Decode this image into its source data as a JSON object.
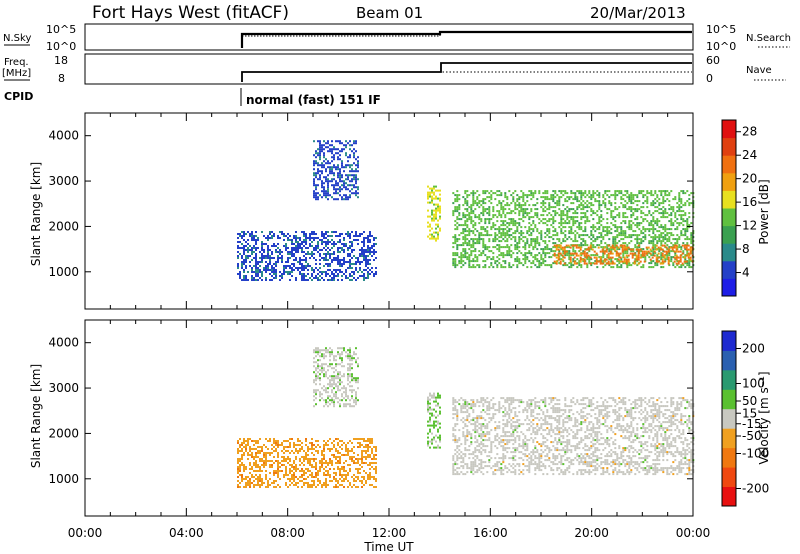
{
  "header": {
    "title": "Fort Hays West (fitACF)",
    "beam": "Beam 01",
    "date": "20/Mar/2013"
  },
  "params": {
    "nsky_label": "N.Sky",
    "nsky_ticks": [
      "10^5",
      "10^0"
    ],
    "nsearch_label": "N.Search",
    "nsearch_ticks": [
      "10^5",
      "10^0"
    ],
    "freq_label": "Freq.",
    "freq_unit": "[MHz]",
    "freq_ticks": [
      "18",
      "8"
    ],
    "nave_label": "Nave",
    "nave_ticks": [
      "60",
      "0"
    ],
    "cpid_label": "CPID",
    "cpid_value": "normal (fast) 151 IF"
  },
  "colors": {
    "power": [
      "#1e1ee6",
      "#2440c8",
      "#2a8a8a",
      "#3aa050",
      "#60c040",
      "#e8e020",
      "#f0a010",
      "#f07010",
      "#e04010",
      "#e01010"
    ],
    "velocity": [
      "#e81010",
      "#f04810",
      "#f07810",
      "#f0a020",
      "#c8c8c0",
      "#5ac030",
      "#2a9a70",
      "#2a60b0",
      "#1e2ad0"
    ]
  },
  "chart_data": [
    {
      "type": "heatmap",
      "name": "power",
      "ylabel": "Slant Range [km]",
      "x_ticks": [
        "00:00",
        "04:00",
        "08:00",
        "12:00",
        "16:00",
        "20:00",
        "00:00"
      ],
      "xlim_hours": [
        0,
        24
      ],
      "y_ticks": [
        1000,
        2000,
        3000,
        4000
      ],
      "ylim_km": [
        180,
        4500
      ],
      "colorbar": {
        "label": "Power [dB]",
        "ticks": [
          4,
          8,
          12,
          16,
          20,
          24,
          28
        ],
        "range": [
          0,
          30
        ]
      },
      "echo_regions": [
        {
          "t_start": 6.0,
          "t_end": 11.5,
          "r_low": 800,
          "r_high": 1900,
          "power_db": 5
        },
        {
          "t_start": 9.0,
          "t_end": 10.8,
          "r_low": 2600,
          "r_high": 3900,
          "power_db": 5
        },
        {
          "t_start": 13.5,
          "t_end": 14.0,
          "r_low": 1700,
          "r_high": 2900,
          "power_db": 16
        },
        {
          "t_start": 14.5,
          "t_end": 24.0,
          "r_low": 1100,
          "r_high": 2800,
          "power_db": 13
        },
        {
          "t_start": 18.5,
          "t_end": 24.0,
          "r_low": 1200,
          "r_high": 1600,
          "power_db": 22
        }
      ]
    },
    {
      "type": "heatmap",
      "name": "velocity",
      "ylabel": "Slant Range [km]",
      "xlabel": "Time UT",
      "x_ticks": [
        "00:00",
        "04:00",
        "08:00",
        "12:00",
        "16:00",
        "20:00",
        "00:00"
      ],
      "xlim_hours": [
        0,
        24
      ],
      "y_ticks": [
        1000,
        2000,
        3000,
        4000
      ],
      "ylim_km": [
        180,
        4500
      ],
      "colorbar": {
        "label": "Velocity [m s⁻¹]",
        "ticks": [
          200,
          100,
          50,
          15,
          -15,
          -50,
          -100,
          -200
        ],
        "range": [
          -250,
          250
        ]
      },
      "echo_regions": [
        {
          "t_start": 6.0,
          "t_end": 11.5,
          "r_low": 800,
          "r_high": 1900,
          "velocity_ms": -60
        },
        {
          "t_start": 9.0,
          "t_end": 10.8,
          "r_low": 2600,
          "r_high": 3900,
          "velocity_ms": 10
        },
        {
          "t_start": 13.5,
          "t_end": 14.0,
          "r_low": 1700,
          "r_high": 2900,
          "velocity_ms": 30
        },
        {
          "t_start": 14.5,
          "t_end": 24.0,
          "r_low": 1100,
          "r_high": 2800,
          "velocity_ms": 0
        }
      ]
    }
  ]
}
